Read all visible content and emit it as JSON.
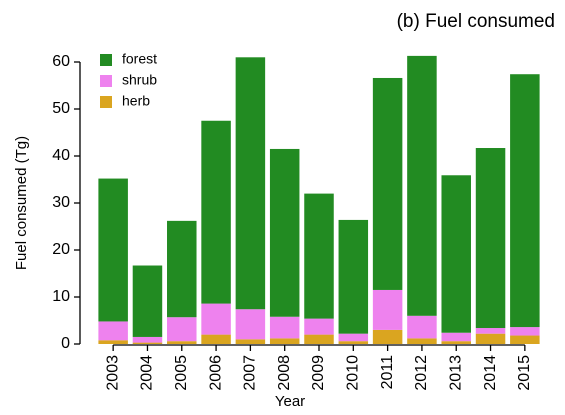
{
  "chart_data": {
    "type": "stacked_bar",
    "title": "(b) Fuel consumed",
    "x_label": "Year",
    "y_label": "Fuel consumed (Tg)",
    "categories": [
      "2003",
      "2004",
      "2005",
      "2006",
      "2007",
      "2008",
      "2009",
      "2010",
      "2011",
      "2012",
      "2013",
      "2014",
      "2015"
    ],
    "series": [
      {
        "name": "forest",
        "color": "#228b22",
        "values": [
          30.4,
          15.2,
          20.5,
          38.9,
          53.6,
          35.7,
          26.6,
          24.2,
          45.1,
          55.3,
          33.5,
          38.3,
          53.8
        ]
      },
      {
        "name": "shrub",
        "color": "#ee82ee",
        "values": [
          4.0,
          1.2,
          5.1,
          6.6,
          6.4,
          4.6,
          3.4,
          1.6,
          8.5,
          4.8,
          1.8,
          1.2,
          1.8
        ]
      },
      {
        "name": "herb",
        "color": "#daa520",
        "values": [
          0.8,
          0.3,
          0.6,
          2.0,
          1.0,
          1.2,
          2.0,
          0.6,
          3.0,
          1.2,
          0.6,
          2.2,
          1.8
        ]
      }
    ],
    "ylim": [
      0,
      60
    ],
    "yticks": [
      0,
      10,
      20,
      30,
      40,
      50,
      60
    ],
    "legend": "upper-left"
  }
}
